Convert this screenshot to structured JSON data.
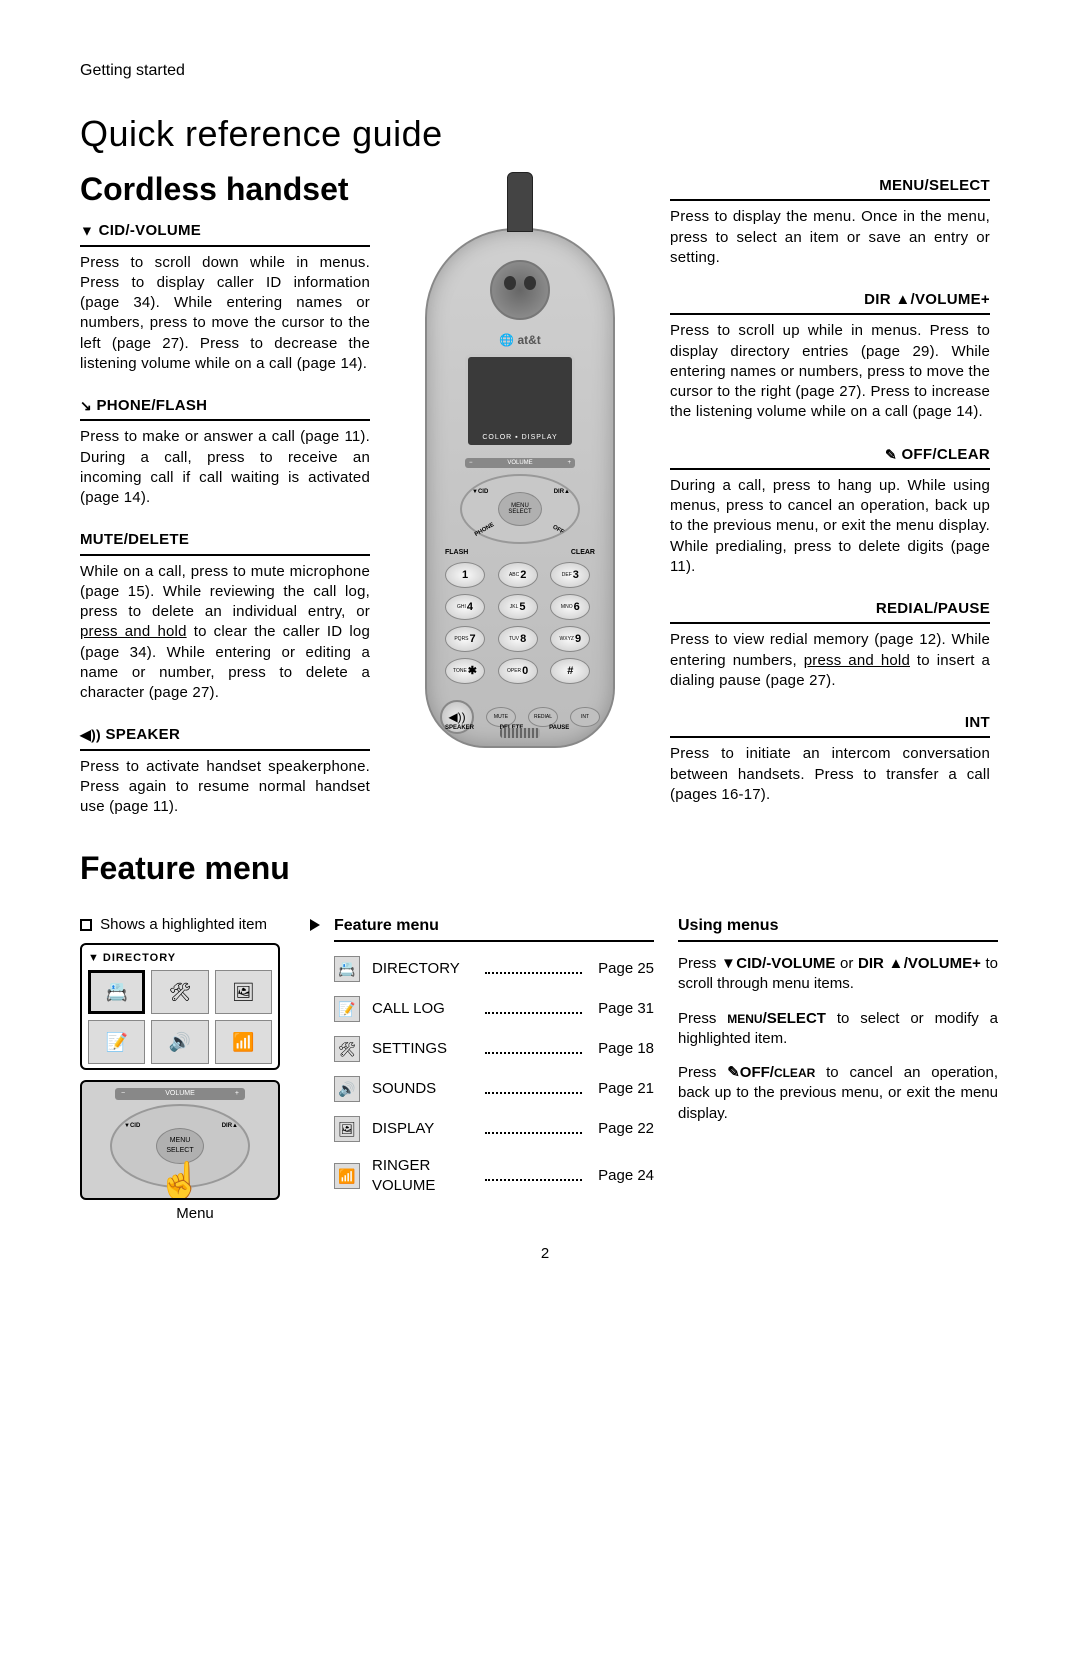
{
  "header": {
    "section": "Getting started",
    "title": "Quick reference guide"
  },
  "handset": {
    "title": "Cordless handset",
    "left": {
      "cid": {
        "heading": "CID/-VOLUME",
        "glyph": "▼",
        "body": "Press to scroll down while in menus. Press to display caller ID information (page 34). While entering names or numbers, press to move the cursor to the left (page 27). Press to decrease the listening volume while on a call (page 14)."
      },
      "phone": {
        "heading": "PHONE/FLASH",
        "glyph": "↘",
        "body": "Press to make or answer a call (page 11). During a call, press to receive an incoming call if call waiting is activated (page 14)."
      },
      "mute": {
        "heading": "MUTE/DELETE",
        "body_html": "While on a call, press to mute microphone (page 15). While reviewing the call log, press to delete an individual entry, or <u>press and hold</u> to clear the caller ID log (page 34). While entering or editing a name or number, press to delete a character (page 27)."
      },
      "speaker": {
        "heading": "SPEAKER",
        "glyph": "◀))",
        "body": "Press to activate handset speakerphone. Press again to resume normal handset use (page 11)."
      }
    },
    "right": {
      "menu": {
        "heading": "MENU/SELECT",
        "body": "Press to display the menu. Once in the menu, press to select an item or save an entry or setting."
      },
      "dir": {
        "heading": "DIR ▲/VOLUME+",
        "body": "Press to scroll up while in menus. Press to display directory entries (page 29). While entering names or numbers, press to move the cursor to the right (page 27). Press to increase the listening volume while on a call (page 14)."
      },
      "off": {
        "heading": "OFF/CLEAR",
        "glyph": "✎",
        "body": "During a call, press to hang up. While using menus, press to cancel an operation, back up to the previous menu, or exit the menu display. While predialing, press to delete digits (page 11)."
      },
      "redial": {
        "heading": "REDIAL/PAUSE",
        "body_html": "Press to view redial memory (page 12). While entering numbers, <u>press and hold</u> to insert a dialing pause (page 27)."
      },
      "int": {
        "heading": "INT",
        "body": "Press to initiate an intercom conversation between handsets. Press to transfer a call (pages 16-17)."
      }
    },
    "phone_labels": {
      "brand": "🌐 at&t",
      "screen": "COLOR ▪ DISPLAY",
      "vol_minus": "−",
      "vol_text": "VOLUME",
      "vol_plus": "+",
      "cid": "▼CID",
      "dir": "DIR▲",
      "phone_key": "PHONE",
      "off_key": "OFF",
      "menu": "MENU",
      "select": "SELECT",
      "flash": "FLASH",
      "clear": "CLEAR",
      "keys": [
        {
          "n": "1",
          "s": ""
        },
        {
          "n": "2",
          "s": "ABC"
        },
        {
          "n": "3",
          "s": "DEF"
        },
        {
          "n": "4",
          "s": "GHI"
        },
        {
          "n": "5",
          "s": "JKL"
        },
        {
          "n": "6",
          "s": "MNO"
        },
        {
          "n": "7",
          "s": "PQRS"
        },
        {
          "n": "8",
          "s": "TUV"
        },
        {
          "n": "9",
          "s": "WXYZ"
        },
        {
          "n": "✱",
          "s": "TONE"
        },
        {
          "n": "0",
          "s": "OPER"
        },
        {
          "n": "#",
          "s": ""
        }
      ],
      "mute": "MUTE",
      "redial": "REDIAL",
      "intbtn": "INT",
      "delete": "DELETE",
      "pause": "PAUSE",
      "speaker": "SPEAKER"
    }
  },
  "feature": {
    "title": "Feature menu",
    "legend": "Shows a highlighted item",
    "directory_label": "DIRECTORY",
    "menu_caption": "Menu",
    "mid_heading": "Feature menu",
    "items": [
      {
        "icon": "📇",
        "label": "DIRECTORY",
        "page": "Page 25"
      },
      {
        "icon": "📝",
        "label": "CALL LOG",
        "page": "Page 31"
      },
      {
        "icon": "🛠",
        "label": "SETTINGS",
        "page": "Page 18"
      },
      {
        "icon": "🔊",
        "label": "SOUNDS",
        "page": "Page 21"
      },
      {
        "icon": "🖼",
        "label": "DISPLAY",
        "page": "Page 22"
      },
      {
        "icon": "📶",
        "label": "RINGER VOLUME",
        "page": "Page 24"
      }
    ],
    "using": {
      "heading": "Using menus",
      "p1_html": "Press <span class='kw'>▼CID/-VOLUME</span> or <span class='kw'>DIR ▲/VOLUME+</span> to scroll through menu items.",
      "p2_html": "Press <span class='kw-sm'>MENU</span><span class='kw'>/SELECT</span> to select or modify a highlighted item.",
      "p3_html": "Press <span class='kw'>✎OFF/</span><span class='kw-sm'>CLEAR</span> to cancel an operation, back up to the previous menu, or exit the menu display."
    }
  },
  "page_number": "2",
  "colors": {
    "text": "#000000",
    "bg": "#ffffff",
    "phone_body": "#c8c8c8",
    "rule": "#000000"
  }
}
